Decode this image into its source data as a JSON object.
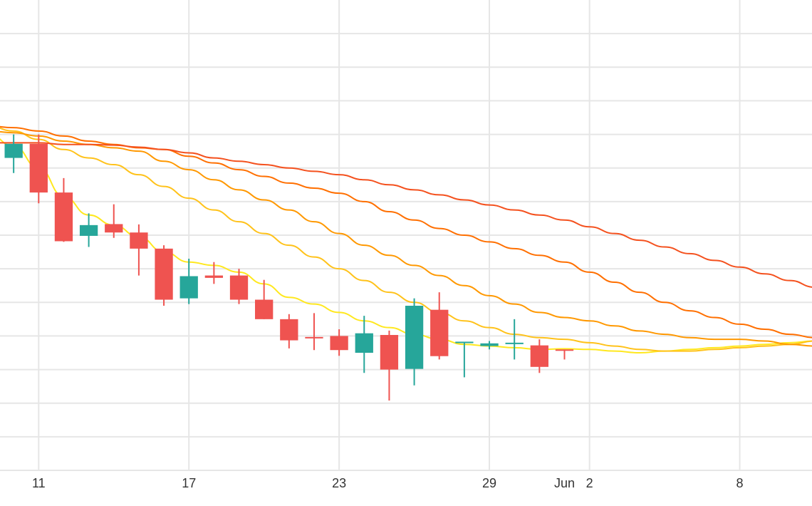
{
  "chart_data": {
    "type": "candlestick",
    "title": "",
    "xlabel": "",
    "ylabel": "",
    "grid": true,
    "x_range": [
      "2025-05-09",
      "2025-06-11"
    ],
    "y_range": [
      0,
      14
    ],
    "x_ticks": [
      {
        "date": "2025-05-11",
        "label": "11"
      },
      {
        "date": "2025-05-17",
        "label": "17"
      },
      {
        "date": "2025-05-23",
        "label": "23"
      },
      {
        "date": "2025-05-29",
        "label": "29"
      },
      {
        "date": "2025-06-01",
        "label": "Jun"
      },
      {
        "date": "2025-06-02",
        "label": "2"
      },
      {
        "date": "2025-06-08",
        "label": "8"
      }
    ],
    "y_gridlines": [
      1,
      2,
      3,
      4,
      5,
      6,
      7,
      8,
      9,
      10,
      11,
      12,
      13
    ],
    "up_color": "#26a69a",
    "down_color": "#ef5350",
    "candles": [
      {
        "date": "2025-05-10",
        "open": 9.3,
        "high": 10.0,
        "low": 8.85,
        "close": 9.72
      },
      {
        "date": "2025-05-11",
        "open": 9.72,
        "high": 10.0,
        "low": 7.95,
        "close": 8.27
      },
      {
        "date": "2025-05-12",
        "open": 8.27,
        "high": 8.7,
        "low": 6.8,
        "close": 6.82
      },
      {
        "date": "2025-05-13",
        "open": 6.98,
        "high": 7.65,
        "low": 6.65,
        "close": 7.3
      },
      {
        "date": "2025-05-14",
        "open": 7.33,
        "high": 7.92,
        "low": 6.92,
        "close": 7.08
      },
      {
        "date": "2025-05-15",
        "open": 7.08,
        "high": 7.32,
        "low": 5.8,
        "close": 6.6
      },
      {
        "date": "2025-05-16",
        "open": 6.6,
        "high": 6.7,
        "low": 4.9,
        "close": 5.08
      },
      {
        "date": "2025-05-17",
        "open": 5.12,
        "high": 6.3,
        "low": 4.95,
        "close": 5.78
      },
      {
        "date": "2025-05-18",
        "open": 5.8,
        "high": 6.2,
        "low": 5.55,
        "close": 5.73
      },
      {
        "date": "2025-05-19",
        "open": 5.8,
        "high": 6.0,
        "low": 4.95,
        "close": 5.08
      },
      {
        "date": "2025-05-20",
        "open": 5.08,
        "high": 5.67,
        "low": 4.5,
        "close": 4.5
      },
      {
        "date": "2025-05-21",
        "open": 4.5,
        "high": 4.65,
        "low": 3.63,
        "close": 3.87
      },
      {
        "date": "2025-05-22",
        "open": 3.97,
        "high": 4.68,
        "low": 3.58,
        "close": 3.95
      },
      {
        "date": "2025-05-23",
        "open": 4.0,
        "high": 4.2,
        "low": 3.41,
        "close": 3.58
      },
      {
        "date": "2025-05-24",
        "open": 3.5,
        "high": 4.6,
        "low": 2.9,
        "close": 4.08
      },
      {
        "date": "2025-05-25",
        "open": 4.03,
        "high": 4.16,
        "low": 2.08,
        "close": 3.0
      },
      {
        "date": "2025-05-26",
        "open": 3.02,
        "high": 5.12,
        "low": 2.53,
        "close": 4.9
      },
      {
        "date": "2025-05-27",
        "open": 4.78,
        "high": 5.3,
        "low": 3.3,
        "close": 3.4
      },
      {
        "date": "2025-05-28",
        "open": 3.8,
        "high": 3.82,
        "low": 2.77,
        "close": 3.83
      },
      {
        "date": "2025-05-29",
        "open": 3.7,
        "high": 3.85,
        "low": 3.6,
        "close": 3.78
      },
      {
        "date": "2025-05-30",
        "open": 3.78,
        "high": 4.5,
        "low": 3.3,
        "close": 3.8
      },
      {
        "date": "2025-05-31",
        "open": 3.72,
        "high": 3.9,
        "low": 2.9,
        "close": 3.08
      },
      {
        "date": "2025-06-01",
        "open": 3.6,
        "high": 3.6,
        "low": 3.3,
        "close": 3.58
      }
    ],
    "moving_averages": [
      {
        "color": "#ffe81f",
        "values": [
          [
            "2025-05-09",
            10.0
          ],
          [
            "2025-05-10",
            9.65
          ],
          [
            "2025-05-11",
            9.0
          ],
          [
            "2025-05-12",
            8.15
          ],
          [
            "2025-05-13",
            7.6
          ],
          [
            "2025-05-14",
            7.3
          ],
          [
            "2025-05-15",
            6.95
          ],
          [
            "2025-05-16",
            6.5
          ],
          [
            "2025-05-17",
            6.2
          ],
          [
            "2025-05-18",
            6.1
          ],
          [
            "2025-05-19",
            5.9
          ],
          [
            "2025-05-20",
            5.55
          ],
          [
            "2025-05-21",
            5.15
          ],
          [
            "2025-05-22",
            4.95
          ],
          [
            "2025-05-23",
            4.7
          ],
          [
            "2025-05-24",
            4.45
          ],
          [
            "2025-05-25",
            4.25
          ],
          [
            "2025-05-26",
            4.05
          ],
          [
            "2025-05-27",
            3.9
          ],
          [
            "2025-05-28",
            3.75
          ],
          [
            "2025-05-29",
            3.7
          ],
          [
            "2025-05-30",
            3.65
          ],
          [
            "2025-05-31",
            3.6
          ],
          [
            "2025-06-01",
            3.62
          ],
          [
            "2025-06-02",
            3.6
          ],
          [
            "2025-06-03",
            3.55
          ],
          [
            "2025-06-04",
            3.5
          ],
          [
            "2025-06-05",
            3.55
          ],
          [
            "2025-06-06",
            3.6
          ],
          [
            "2025-06-07",
            3.65
          ],
          [
            "2025-06-08",
            3.7
          ],
          [
            "2025-06-09",
            3.75
          ],
          [
            "2025-06-10",
            3.8
          ],
          [
            "2025-06-11",
            3.85
          ]
        ]
      },
      {
        "color": "#ffc21a",
        "values": [
          [
            "2025-05-09",
            10.25
          ],
          [
            "2025-05-10",
            10.1
          ],
          [
            "2025-05-11",
            9.85
          ],
          [
            "2025-05-12",
            9.55
          ],
          [
            "2025-05-13",
            9.3
          ],
          [
            "2025-05-14",
            9.1
          ],
          [
            "2025-05-15",
            8.8
          ],
          [
            "2025-05-16",
            8.45
          ],
          [
            "2025-05-17",
            8.1
          ],
          [
            "2025-05-18",
            7.75
          ],
          [
            "2025-05-19",
            7.4
          ],
          [
            "2025-05-20",
            7.05
          ],
          [
            "2025-05-21",
            6.7
          ],
          [
            "2025-05-22",
            6.35
          ],
          [
            "2025-05-23",
            6.0
          ],
          [
            "2025-05-24",
            5.65
          ],
          [
            "2025-05-25",
            5.3
          ],
          [
            "2025-05-26",
            5.0
          ],
          [
            "2025-05-27",
            4.7
          ],
          [
            "2025-05-28",
            4.45
          ],
          [
            "2025-05-29",
            4.25
          ],
          [
            "2025-05-30",
            4.05
          ],
          [
            "2025-05-31",
            3.95
          ],
          [
            "2025-06-01",
            3.9
          ],
          [
            "2025-06-02",
            3.8
          ],
          [
            "2025-06-03",
            3.7
          ],
          [
            "2025-06-04",
            3.6
          ],
          [
            "2025-06-05",
            3.55
          ],
          [
            "2025-06-06",
            3.55
          ],
          [
            "2025-06-07",
            3.6
          ],
          [
            "2025-06-08",
            3.65
          ],
          [
            "2025-06-09",
            3.7
          ],
          [
            "2025-06-10",
            3.75
          ],
          [
            "2025-06-11",
            3.85
          ]
        ]
      },
      {
        "color": "#ff9800",
        "values": [
          [
            "2025-05-09",
            10.1
          ],
          [
            "2025-05-10",
            10.05
          ],
          [
            "2025-05-11",
            9.95
          ],
          [
            "2025-05-12",
            9.8
          ],
          [
            "2025-05-13",
            9.7
          ],
          [
            "2025-05-14",
            9.6
          ],
          [
            "2025-05-15",
            9.5
          ],
          [
            "2025-05-16",
            9.2
          ],
          [
            "2025-05-17",
            8.95
          ],
          [
            "2025-05-18",
            8.65
          ],
          [
            "2025-05-19",
            8.35
          ],
          [
            "2025-05-20",
            8.05
          ],
          [
            "2025-05-21",
            7.75
          ],
          [
            "2025-05-22",
            7.4
          ],
          [
            "2025-05-23",
            7.05
          ],
          [
            "2025-05-24",
            6.7
          ],
          [
            "2025-05-25",
            6.4
          ],
          [
            "2025-05-26",
            6.1
          ],
          [
            "2025-05-27",
            5.8
          ],
          [
            "2025-05-28",
            5.5
          ],
          [
            "2025-05-29",
            5.2
          ],
          [
            "2025-05-30",
            4.95
          ],
          [
            "2025-05-31",
            4.7
          ],
          [
            "2025-06-01",
            4.55
          ],
          [
            "2025-06-02",
            4.45
          ],
          [
            "2025-06-03",
            4.3
          ],
          [
            "2025-06-04",
            4.15
          ],
          [
            "2025-06-05",
            4.05
          ],
          [
            "2025-06-06",
            3.95
          ],
          [
            "2025-06-07",
            3.9
          ],
          [
            "2025-06-08",
            3.9
          ],
          [
            "2025-06-09",
            3.85
          ],
          [
            "2025-06-10",
            3.75
          ],
          [
            "2025-06-11",
            3.7
          ]
        ]
      },
      {
        "color": "#ff6f00",
        "values": [
          [
            "2025-05-09",
            10.25
          ],
          [
            "2025-05-10",
            10.2
          ],
          [
            "2025-05-11",
            10.1
          ],
          [
            "2025-05-12",
            9.95
          ],
          [
            "2025-05-13",
            9.8
          ],
          [
            "2025-05-14",
            9.7
          ],
          [
            "2025-05-15",
            9.6
          ],
          [
            "2025-05-16",
            9.55
          ],
          [
            "2025-05-17",
            9.35
          ],
          [
            "2025-05-18",
            9.15
          ],
          [
            "2025-05-19",
            8.95
          ],
          [
            "2025-05-20",
            8.75
          ],
          [
            "2025-05-21",
            8.55
          ],
          [
            "2025-05-22",
            8.4
          ],
          [
            "2025-05-23",
            8.25
          ],
          [
            "2025-05-24",
            8.0
          ],
          [
            "2025-05-25",
            7.7
          ],
          [
            "2025-05-26",
            7.45
          ],
          [
            "2025-05-27",
            7.2
          ],
          [
            "2025-05-28",
            7.0
          ],
          [
            "2025-05-29",
            6.8
          ],
          [
            "2025-05-30",
            6.6
          ],
          [
            "2025-05-31",
            6.4
          ],
          [
            "2025-06-01",
            6.2
          ],
          [
            "2025-06-02",
            5.9
          ],
          [
            "2025-06-03",
            5.6
          ],
          [
            "2025-06-04",
            5.3
          ],
          [
            "2025-06-05",
            5.0
          ],
          [
            "2025-06-06",
            4.75
          ],
          [
            "2025-06-07",
            4.55
          ],
          [
            "2025-06-08",
            4.35
          ],
          [
            "2025-06-09",
            4.2
          ],
          [
            "2025-06-10",
            4.05
          ],
          [
            "2025-06-11",
            3.95
          ]
        ]
      },
      {
        "color": "#f4511e",
        "values": [
          [
            "2025-05-09",
            9.75
          ],
          [
            "2025-05-10",
            9.75
          ],
          [
            "2025-05-11",
            9.75
          ],
          [
            "2025-05-12",
            9.7
          ],
          [
            "2025-05-13",
            9.7
          ],
          [
            "2025-05-14",
            9.68
          ],
          [
            "2025-05-15",
            9.62
          ],
          [
            "2025-05-16",
            9.55
          ],
          [
            "2025-05-17",
            9.45
          ],
          [
            "2025-05-18",
            9.3
          ],
          [
            "2025-05-19",
            9.2
          ],
          [
            "2025-05-20",
            9.1
          ],
          [
            "2025-05-21",
            9.0
          ],
          [
            "2025-05-22",
            8.9
          ],
          [
            "2025-05-23",
            8.8
          ],
          [
            "2025-05-24",
            8.65
          ],
          [
            "2025-05-25",
            8.5
          ],
          [
            "2025-05-26",
            8.35
          ],
          [
            "2025-05-27",
            8.2
          ],
          [
            "2025-05-28",
            8.05
          ],
          [
            "2025-05-29",
            7.9
          ],
          [
            "2025-05-30",
            7.75
          ],
          [
            "2025-05-31",
            7.6
          ],
          [
            "2025-06-01",
            7.45
          ],
          [
            "2025-06-02",
            7.25
          ],
          [
            "2025-06-03",
            7.05
          ],
          [
            "2025-06-04",
            6.85
          ],
          [
            "2025-06-05",
            6.65
          ],
          [
            "2025-06-06",
            6.45
          ],
          [
            "2025-06-07",
            6.25
          ],
          [
            "2025-06-08",
            6.05
          ],
          [
            "2025-06-09",
            5.85
          ],
          [
            "2025-06-10",
            5.65
          ],
          [
            "2025-06-11",
            5.45
          ]
        ]
      }
    ]
  }
}
